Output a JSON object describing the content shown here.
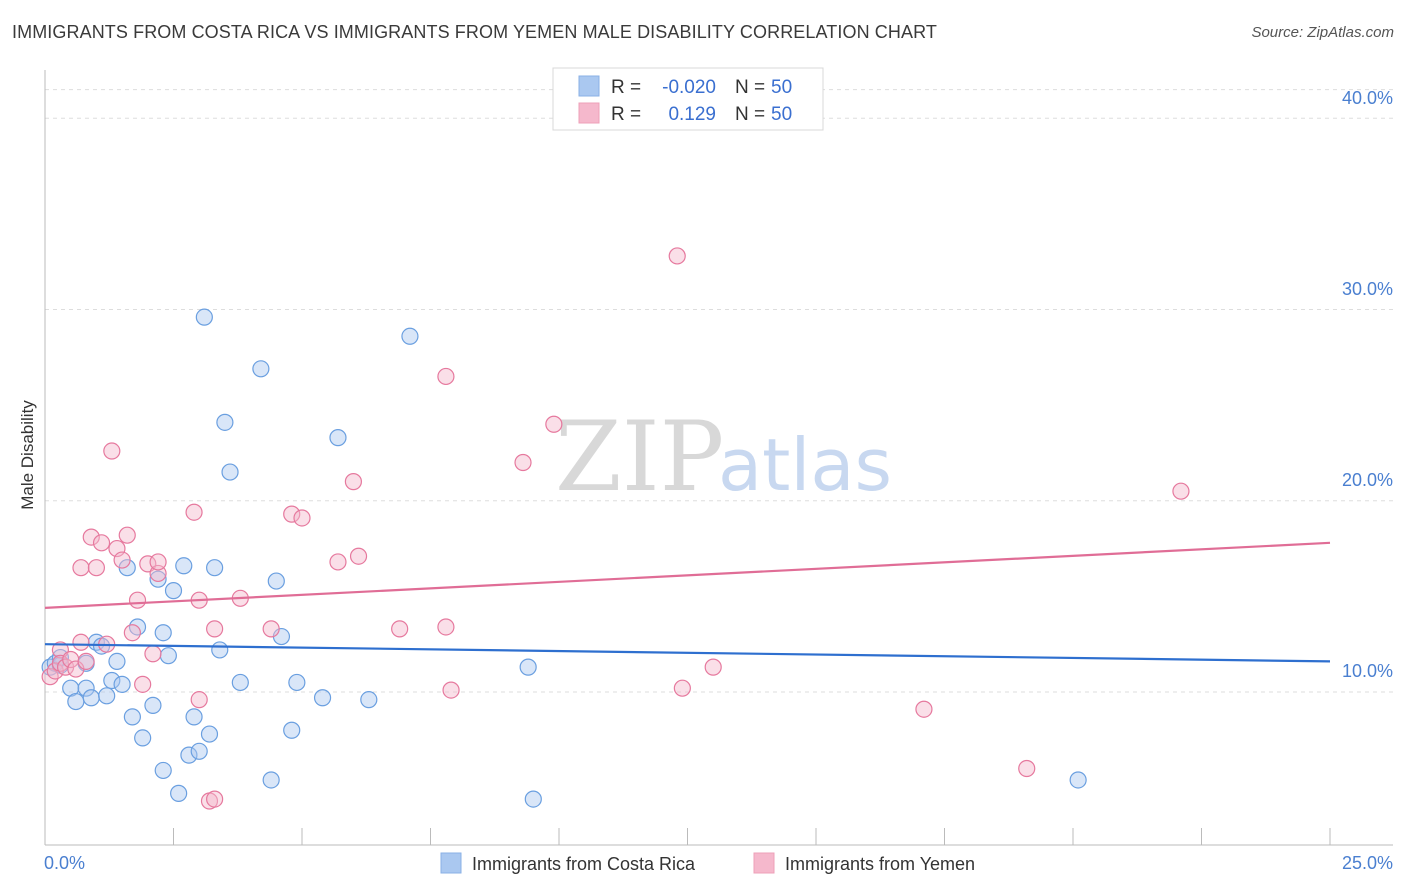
{
  "header": {
    "title": "IMMIGRANTS FROM COSTA RICA VS IMMIGRANTS FROM YEMEN MALE DISABILITY CORRELATION CHART",
    "source": "Source: ZipAtlas.com"
  },
  "watermark": {
    "zip": "ZIP",
    "atlas": "atlas"
  },
  "legend": {
    "rows": [
      {
        "r_label": "R =",
        "r_value": "-0.020",
        "n_label": "N =",
        "n_value": "50",
        "color": "#aac8f0"
      },
      {
        "r_label": "R =",
        "r_value": "0.129",
        "n_label": "N =",
        "n_value": "50",
        "color": "#f5b8cc"
      }
    ]
  },
  "chart_data": {
    "type": "scatter",
    "title": "IMMIGRANTS FROM COSTA RICA VS IMMIGRANTS FROM YEMEN MALE DISABILITY CORRELATION CHART",
    "xlabel": "",
    "ylabel": "Male Disability",
    "xlim": [
      0,
      25
    ],
    "ylim": [
      2,
      42
    ],
    "x_tick_labels": [
      "0.0%",
      "25.0%"
    ],
    "y_ticks": [
      10,
      20,
      30,
      40
    ],
    "y_tick_labels": [
      "10.0%",
      "20.0%",
      "30.0%",
      "40.0%"
    ],
    "grid": true,
    "series": [
      {
        "name": "Immigrants from Costa Rica",
        "color": "#6a9fe0",
        "fill": "#aac8f0",
        "trend": {
          "x": [
            0,
            25
          ],
          "y": [
            12.5,
            11.6
          ]
        },
        "points": [
          [
            0.1,
            11.3
          ],
          [
            0.2,
            11.5
          ],
          [
            0.3,
            11.4
          ],
          [
            0.3,
            11.8
          ],
          [
            0.5,
            10.2
          ],
          [
            0.6,
            9.5
          ],
          [
            0.8,
            11.5
          ],
          [
            0.8,
            10.2
          ],
          [
            0.9,
            9.7
          ],
          [
            1.0,
            12.6
          ],
          [
            1.1,
            12.4
          ],
          [
            1.2,
            9.8
          ],
          [
            1.3,
            10.6
          ],
          [
            1.4,
            11.6
          ],
          [
            1.5,
            10.4
          ],
          [
            1.6,
            16.5
          ],
          [
            1.7,
            8.7
          ],
          [
            1.8,
            13.4
          ],
          [
            1.9,
            7.6
          ],
          [
            2.1,
            9.3
          ],
          [
            2.2,
            15.9
          ],
          [
            2.3,
            5.9
          ],
          [
            2.3,
            13.1
          ],
          [
            2.4,
            11.9
          ],
          [
            2.5,
            15.3
          ],
          [
            2.6,
            4.7
          ],
          [
            2.7,
            16.6
          ],
          [
            2.8,
            6.7
          ],
          [
            2.9,
            8.7
          ],
          [
            3.0,
            6.9
          ],
          [
            3.1,
            29.6
          ],
          [
            3.2,
            7.8
          ],
          [
            3.3,
            16.5
          ],
          [
            3.4,
            12.2
          ],
          [
            3.5,
            24.1
          ],
          [
            3.6,
            21.5
          ],
          [
            3.8,
            10.5
          ],
          [
            4.2,
            26.9
          ],
          [
            4.4,
            5.4
          ],
          [
            4.5,
            15.8
          ],
          [
            4.6,
            12.9
          ],
          [
            4.8,
            8.0
          ],
          [
            4.9,
            10.5
          ],
          [
            5.4,
            9.7
          ],
          [
            5.7,
            23.3
          ],
          [
            6.3,
            9.6
          ],
          [
            7.1,
            28.6
          ],
          [
            9.4,
            11.3
          ],
          [
            9.5,
            4.4
          ],
          [
            20.1,
            5.4
          ]
        ]
      },
      {
        "name": "Immigrants from Yemen",
        "color": "#e6799e",
        "fill": "#f5b8cc",
        "trend": {
          "x": [
            0,
            25
          ],
          "y": [
            14.4,
            17.8
          ]
        },
        "points": [
          [
            0.1,
            10.8
          ],
          [
            0.2,
            11.1
          ],
          [
            0.3,
            12.2
          ],
          [
            0.3,
            11.5
          ],
          [
            0.4,
            11.3
          ],
          [
            0.5,
            11.7
          ],
          [
            0.6,
            11.2
          ],
          [
            0.7,
            12.6
          ],
          [
            0.7,
            16.5
          ],
          [
            0.8,
            11.6
          ],
          [
            0.9,
            18.1
          ],
          [
            1.0,
            16.5
          ],
          [
            1.1,
            17.8
          ],
          [
            1.2,
            12.5
          ],
          [
            1.3,
            22.6
          ],
          [
            1.4,
            17.5
          ],
          [
            1.5,
            16.9
          ],
          [
            1.6,
            18.2
          ],
          [
            1.7,
            13.1
          ],
          [
            1.8,
            14.8
          ],
          [
            1.9,
            10.4
          ],
          [
            2.0,
            16.7
          ],
          [
            2.1,
            12.0
          ],
          [
            2.2,
            16.2
          ],
          [
            2.2,
            16.8
          ],
          [
            2.9,
            19.4
          ],
          [
            3.0,
            14.8
          ],
          [
            3.0,
            9.6
          ],
          [
            3.2,
            4.3
          ],
          [
            3.3,
            4.4
          ],
          [
            3.3,
            13.3
          ],
          [
            3.8,
            14.9
          ],
          [
            4.4,
            13.3
          ],
          [
            4.8,
            19.3
          ],
          [
            5.0,
            19.1
          ],
          [
            5.7,
            16.8
          ],
          [
            6.0,
            21.0
          ],
          [
            6.1,
            17.1
          ],
          [
            6.9,
            13.3
          ],
          [
            7.8,
            26.5
          ],
          [
            7.8,
            13.4
          ],
          [
            7.9,
            10.1
          ],
          [
            9.3,
            22.0
          ],
          [
            9.9,
            24.0
          ],
          [
            12.3,
            32.8
          ],
          [
            12.4,
            10.2
          ],
          [
            13.0,
            11.3
          ],
          [
            17.1,
            9.1
          ],
          [
            19.1,
            6.0
          ],
          [
            22.1,
            20.5
          ]
        ]
      }
    ]
  },
  "bottom_legend": [
    {
      "label": "Immigrants from Costa Rica",
      "color": "#aac8f0"
    },
    {
      "label": "Immigrants from Yemen",
      "color": "#f5b8cc"
    }
  ]
}
